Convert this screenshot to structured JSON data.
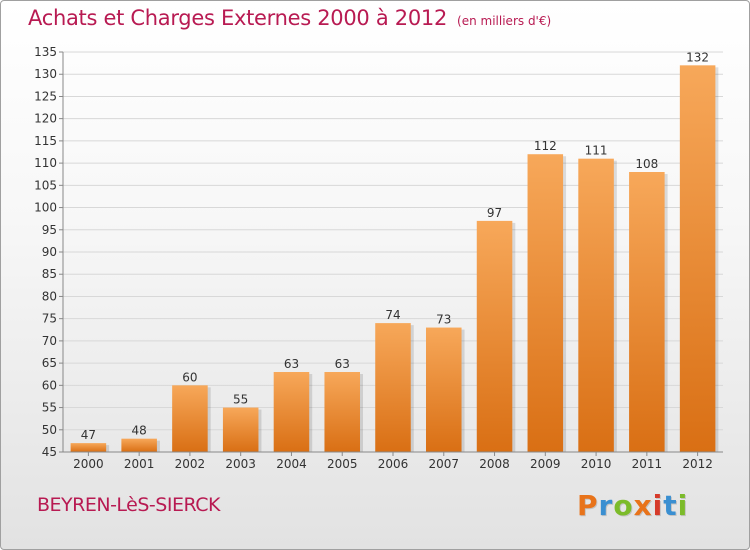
{
  "header": {
    "title": "Achats et Charges Externes 2000 à 2012",
    "unit": "(en milliers d'€)"
  },
  "footer": {
    "commune": "BEYREN-LèS-SIERCK",
    "brand": "Proxiti",
    "brand_colors": [
      "#e8731a",
      "#3a8fd1",
      "#7cbb2a",
      "#e8731a",
      "#d63a2a",
      "#3a8fd1",
      "#7cbb2a"
    ]
  },
  "colors": {
    "bar_light": "#f7a85a",
    "bar_dark": "#d96f14",
    "axis": "#888888",
    "grid": "#d8d8d8",
    "text": "#333333",
    "accent": "#b81a52"
  },
  "chart_data": {
    "type": "bar",
    "categories": [
      "2000",
      "2001",
      "2002",
      "2003",
      "2004",
      "2005",
      "2006",
      "2007",
      "2008",
      "2009",
      "2010",
      "2011",
      "2012"
    ],
    "values": [
      47,
      48,
      60,
      55,
      63,
      63,
      74,
      73,
      97,
      112,
      111,
      108,
      132
    ],
    "data_labels": [
      "47",
      "48",
      "60",
      "55",
      "63",
      "63",
      "74",
      "73",
      "97",
      "112",
      "111",
      "108",
      "132"
    ],
    "title": "Achats et Charges Externes 2000 à 2012",
    "subtitle": "(en milliers d'€)",
    "xlabel": "",
    "ylabel": "",
    "ylim": [
      45,
      135
    ],
    "yticks": [
      45,
      50,
      55,
      60,
      65,
      70,
      75,
      80,
      85,
      90,
      95,
      100,
      105,
      110,
      115,
      120,
      125,
      130,
      135
    ],
    "grid": true,
    "legend": "none"
  }
}
